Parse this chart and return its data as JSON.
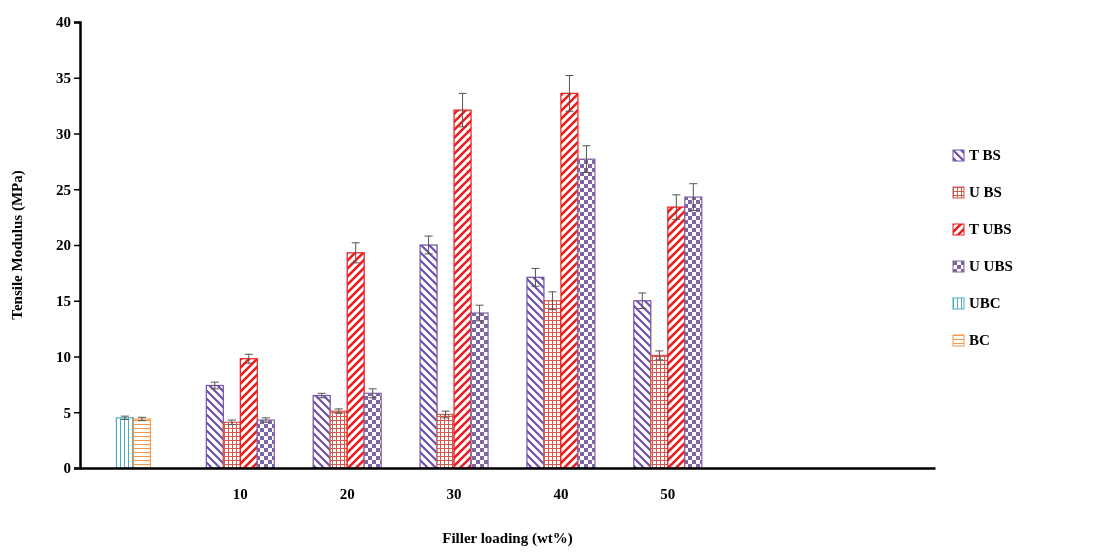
{
  "chart_data": {
    "type": "bar",
    "xlabel": "Filler loading (wt%)",
    "ylabel": "Tensile Modulus (MPa)",
    "categories": [
      null,
      "10",
      "20",
      "30",
      "40",
      "50",
      null,
      null
    ],
    "ylim": [
      0,
      40
    ],
    "yticks": [
      0,
      5,
      10,
      15,
      20,
      25,
      30,
      35,
      40
    ],
    "grid": false,
    "legend": "right",
    "series": [
      {
        "name": "T BS",
        "color": "#7050a8",
        "values": [
          null,
          7.4,
          6.5,
          20.0,
          17.1,
          15.0,
          null,
          null
        ],
        "errors": [
          null,
          0.3,
          0.2,
          0.8,
          0.8,
          0.7,
          null,
          null
        ]
      },
      {
        "name": "U BS",
        "color": "#d05a50",
        "values": [
          null,
          4.1,
          5.1,
          4.8,
          15.0,
          10.1,
          null,
          null
        ],
        "errors": [
          null,
          0.2,
          0.2,
          0.3,
          0.8,
          0.4,
          null,
          null
        ]
      },
      {
        "name": "T UBS",
        "color": "#ee1c1c",
        "values": [
          null,
          9.8,
          19.3,
          32.1,
          33.6,
          23.4,
          null,
          null
        ],
        "errors": [
          null,
          0.4,
          0.9,
          1.5,
          1.6,
          1.1,
          null,
          null
        ]
      },
      {
        "name": "U UBS",
        "color": "#8064a2",
        "values": [
          null,
          4.3,
          6.7,
          13.9,
          27.7,
          24.3,
          null,
          null
        ],
        "errors": [
          null,
          0.2,
          0.4,
          0.7,
          1.2,
          1.2,
          null,
          null
        ]
      },
      {
        "name": "UBC",
        "color": "#4bacc6",
        "values": [
          4.5,
          null,
          null,
          null,
          null,
          null,
          null,
          null
        ],
        "errors": [
          0.15,
          null,
          null,
          null,
          null,
          null,
          null,
          null
        ]
      },
      {
        "name": "BC",
        "color": "#f79646",
        "values": [
          4.4,
          null,
          null,
          null,
          null,
          null,
          null,
          null
        ],
        "errors": [
          0.15,
          null,
          null,
          null,
          null,
          null,
          null,
          null
        ]
      }
    ]
  }
}
